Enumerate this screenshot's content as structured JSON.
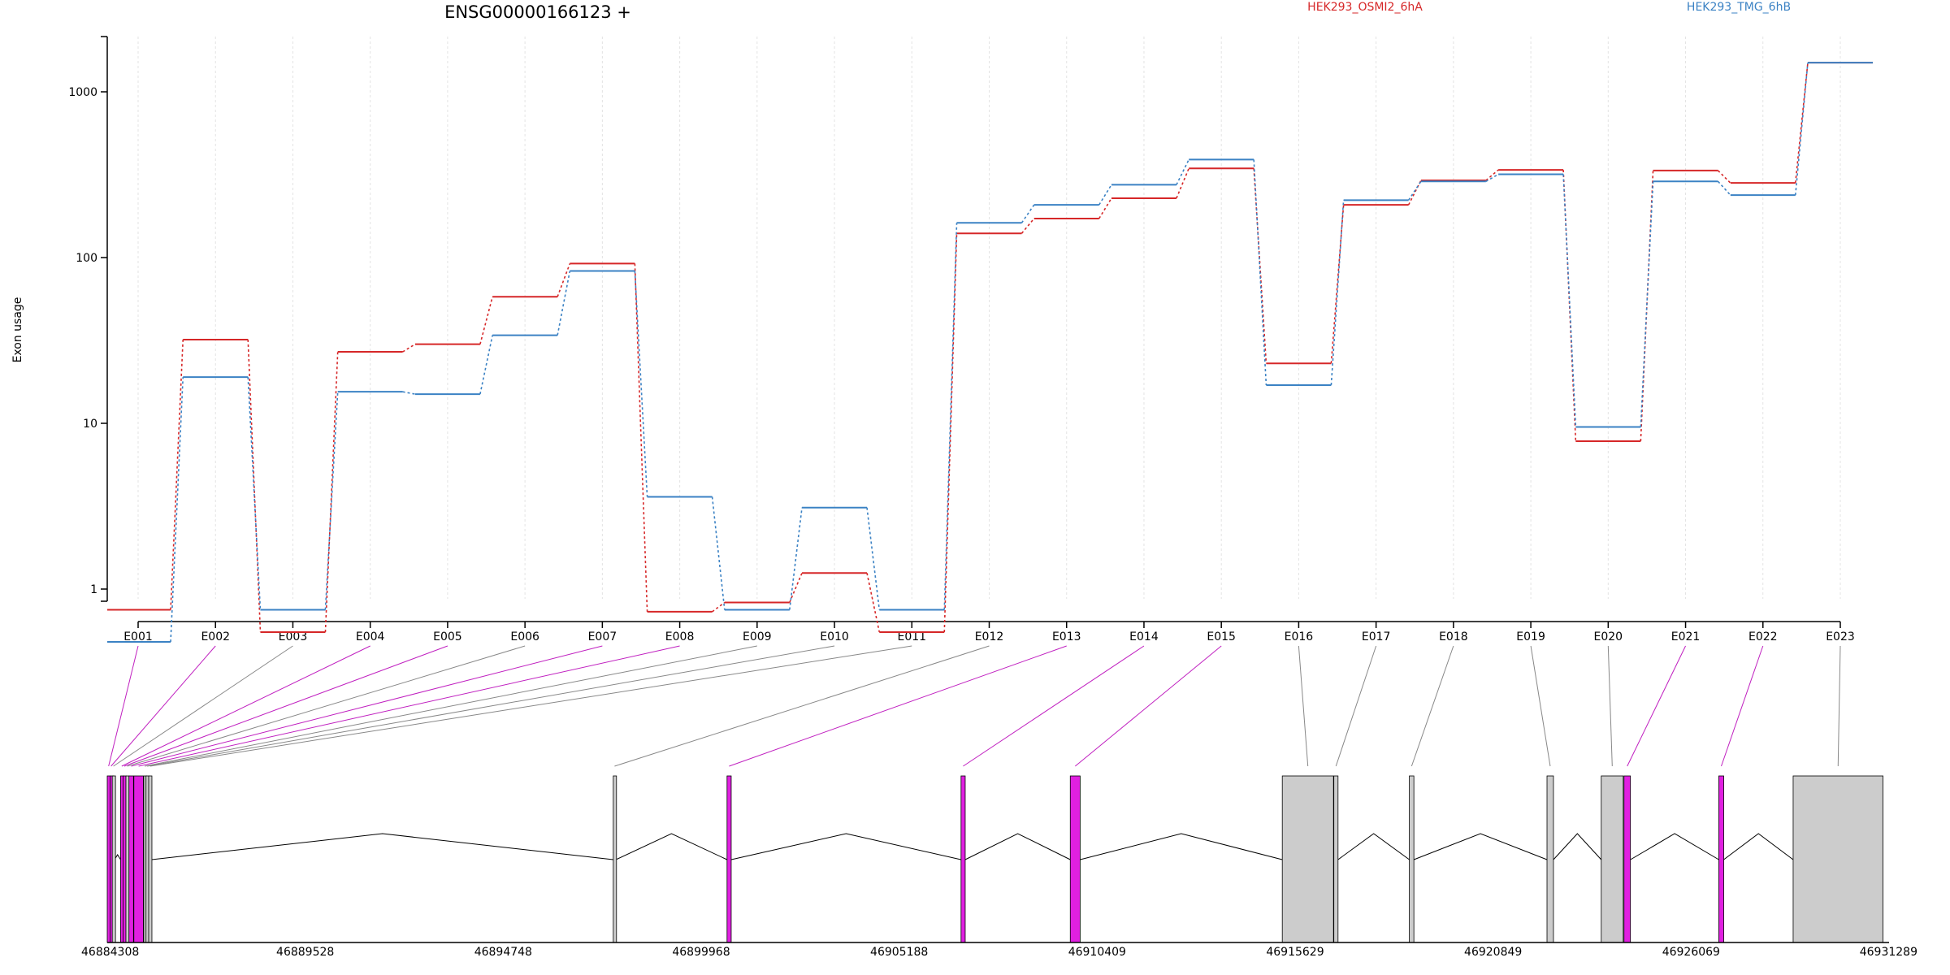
{
  "chart_data": {
    "type": "line",
    "title": "ENSG00000166123 +",
    "ylabel": "Exon usage",
    "yscale": "log",
    "ylim": [
      0.5,
      2000
    ],
    "yticks": [
      1,
      10,
      100,
      1000
    ],
    "ytick_labels": [
      "1",
      "10",
      "100",
      "1000"
    ],
    "grid": "vertical dotted at each exon",
    "legend_position": "top-right",
    "categories": [
      "E001",
      "E002",
      "E003",
      "E004",
      "E005",
      "E006",
      "E007",
      "E008",
      "E009",
      "E010",
      "E011",
      "E012",
      "E013",
      "E014",
      "E015",
      "E016",
      "E017",
      "E018",
      "E019",
      "E020",
      "E021",
      "E022",
      "E023"
    ],
    "series": [
      {
        "name": "HEK293_OSMI2_6hA",
        "color": "#d62728",
        "values": [
          0.75,
          32,
          0.55,
          27,
          30,
          58,
          92,
          0.73,
          0.83,
          1.25,
          0.55,
          140,
          172,
          228,
          345,
          23,
          208,
          292,
          338,
          7.8,
          335,
          282,
          1500
        ]
      },
      {
        "name": "HEK293_TMG_6hB",
        "color": "#3b82c4",
        "values": [
          0.48,
          19,
          0.75,
          15.5,
          15,
          34,
          83,
          3.6,
          0.75,
          3.1,
          0.75,
          162,
          208,
          275,
          390,
          17,
          222,
          288,
          318,
          9.5,
          288,
          238,
          1500
        ]
      }
    ],
    "gene_model": {
      "genomic_ticks": [
        "46884308",
        "46889528",
        "46894748",
        "46899968",
        "46905188",
        "46910409",
        "46915629",
        "46920849",
        "46926069",
        "46931289"
      ],
      "genomic_range": [
        46884308,
        46931289
      ],
      "colors": {
        "significant": "#e020e0",
        "normal": "#cccccc"
      },
      "exons": [
        {
          "id": "E001",
          "start": 46884308,
          "end": 46884380,
          "significant": true
        },
        {
          "id": "E002",
          "start": 46884385,
          "end": 46884430,
          "significant": true
        },
        {
          "id": "E003",
          "start": 46884440,
          "end": 46884500,
          "significant": false
        },
        {
          "id": "E004",
          "start": 46884660,
          "end": 46884720,
          "significant": true
        },
        {
          "id": "E005",
          "start": 46884725,
          "end": 46884790,
          "significant": true
        },
        {
          "id": "E006",
          "start": 46884800,
          "end": 46884870,
          "significant": false
        },
        {
          "id": "E007",
          "start": 46884880,
          "end": 46885000,
          "significant": true
        },
        {
          "id": "E008",
          "start": 46885010,
          "end": 46885260,
          "significant": true
        },
        {
          "id": "E009",
          "start": 46885270,
          "end": 46885320,
          "significant": false
        },
        {
          "id": "E010",
          "start": 46885330,
          "end": 46885390,
          "significant": false
        },
        {
          "id": "E011",
          "start": 46885400,
          "end": 46885480,
          "significant": false
        },
        {
          "id": "E012",
          "start": 46897650,
          "end": 46897720,
          "significant": false
        },
        {
          "id": "E013",
          "start": 46900650,
          "end": 46900760,
          "significant": true
        },
        {
          "id": "E014",
          "start": 46906820,
          "end": 46906930,
          "significant": true
        },
        {
          "id": "E015",
          "start": 46909700,
          "end": 46909960,
          "significant": true
        },
        {
          "id": "E016",
          "start": 46915290,
          "end": 46916640,
          "significant": false
        },
        {
          "id": "E017",
          "start": 46916650,
          "end": 46916760,
          "significant": false
        },
        {
          "id": "E018",
          "start": 46918640,
          "end": 46918760,
          "significant": false
        },
        {
          "id": "E019",
          "start": 46922270,
          "end": 46922440,
          "significant": false
        },
        {
          "id": "E020",
          "start": 46923700,
          "end": 46924280,
          "significant": false
        },
        {
          "id": "E021",
          "start": 46924300,
          "end": 46924470,
          "significant": true
        },
        {
          "id": "E022",
          "start": 46926800,
          "end": 46926930,
          "significant": true
        },
        {
          "id": "E023",
          "start": 46928760,
          "end": 46931130,
          "significant": false
        }
      ]
    }
  }
}
